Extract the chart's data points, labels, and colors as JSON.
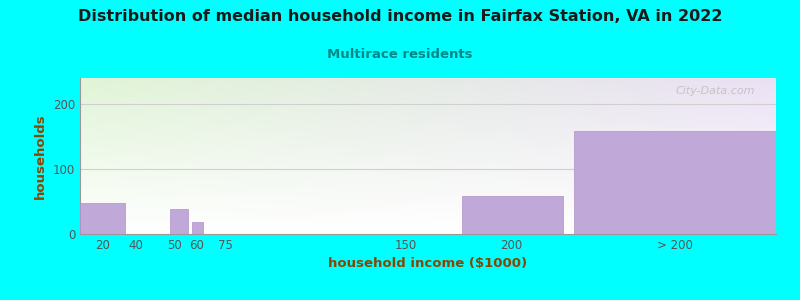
{
  "title": "Distribution of median household income in Fairfax Station, VA in 2022",
  "subtitle": "Multirace residents",
  "xlabel": "household income ($1000)",
  "ylabel": "households",
  "background_color": "#00FFFF",
  "bar_color": "#c0a8d8",
  "bar_edge_color": "#b090c8",
  "title_color": "#1a1a1a",
  "subtitle_color": "#008888",
  "axis_label_color": "#8B4500",
  "tick_label_color": "#555555",
  "watermark_text": "City-Data.com",
  "bar_lefts": [
    5,
    30,
    45,
    55,
    62,
    87,
    175,
    225
  ],
  "bar_widths": [
    20,
    10,
    8,
    5,
    10,
    85,
    45,
    90
  ],
  "bar_heights": [
    47,
    0,
    38,
    18,
    0,
    0,
    58,
    158
  ],
  "xtick_positions": [
    15,
    30,
    47,
    57,
    70,
    150,
    197,
    270
  ],
  "xtick_labels": [
    "20",
    "40",
    "50",
    "60",
    "75",
    "150",
    "200",
    "> 200"
  ],
  "ylim": [
    0,
    240
  ],
  "yticks": [
    0,
    100,
    200
  ],
  "xlim": [
    5,
    315
  ]
}
